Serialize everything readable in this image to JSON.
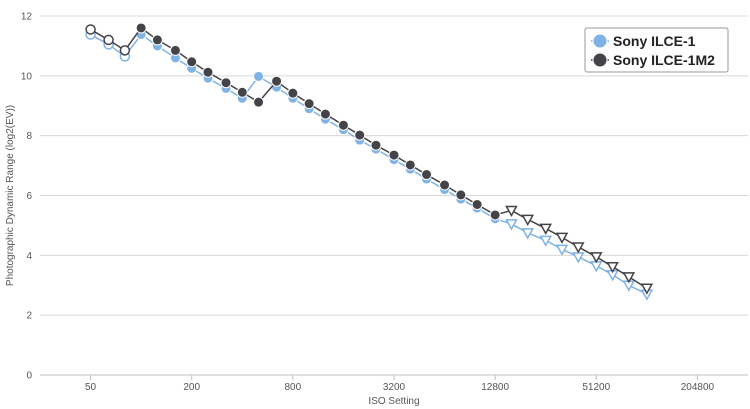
{
  "chart_data": {
    "type": "line",
    "xlabel": "ISO Setting",
    "ylabel": "Photographic Dynamic Range (log2(EV))",
    "x_scale": "log2",
    "xlim": [
      25,
      409600
    ],
    "ylim": [
      0,
      12
    ],
    "x_ticks": [
      50,
      200,
      800,
      3200,
      12800,
      51200,
      204800
    ],
    "x_tick_labels": [
      "50",
      "200",
      "800",
      "3200",
      "12800",
      "51200",
      "204800"
    ],
    "y_ticks": [
      0,
      2,
      4,
      6,
      8,
      10,
      12
    ],
    "y_tick_labels": [
      "0",
      "2",
      "4",
      "6",
      "8",
      "10",
      "12"
    ],
    "grid": "horizontal",
    "legend_position": "top-right",
    "series": [
      {
        "name": "Sony ILCE-1",
        "color": "#7fb2e5",
        "points": [
          {
            "x": 50,
            "y": 11.38,
            "marker": "open-circle"
          },
          {
            "x": 64,
            "y": 11.05,
            "marker": "open-circle"
          },
          {
            "x": 80,
            "y": 10.65,
            "marker": "open-circle"
          },
          {
            "x": 100,
            "y": 11.38,
            "marker": "circle"
          },
          {
            "x": 125,
            "y": 11.0,
            "marker": "circle"
          },
          {
            "x": 160,
            "y": 10.6,
            "marker": "circle"
          },
          {
            "x": 200,
            "y": 10.25,
            "marker": "circle"
          },
          {
            "x": 250,
            "y": 9.92,
            "marker": "circle"
          },
          {
            "x": 320,
            "y": 9.58,
            "marker": "circle"
          },
          {
            "x": 400,
            "y": 9.25,
            "marker": "circle"
          },
          {
            "x": 500,
            "y": 9.98,
            "marker": "circle"
          },
          {
            "x": 640,
            "y": 9.62,
            "marker": "circle"
          },
          {
            "x": 800,
            "y": 9.25,
            "marker": "circle"
          },
          {
            "x": 1000,
            "y": 8.9,
            "marker": "circle"
          },
          {
            "x": 1250,
            "y": 8.55,
            "marker": "circle"
          },
          {
            "x": 1600,
            "y": 8.2,
            "marker": "circle"
          },
          {
            "x": 2000,
            "y": 7.85,
            "marker": "circle"
          },
          {
            "x": 2500,
            "y": 7.55,
            "marker": "circle"
          },
          {
            "x": 3200,
            "y": 7.2,
            "marker": "circle"
          },
          {
            "x": 4000,
            "y": 6.88,
            "marker": "circle"
          },
          {
            "x": 5000,
            "y": 6.55,
            "marker": "circle"
          },
          {
            "x": 6400,
            "y": 6.2,
            "marker": "circle"
          },
          {
            "x": 8000,
            "y": 5.88,
            "marker": "circle"
          },
          {
            "x": 10000,
            "y": 5.58,
            "marker": "circle"
          },
          {
            "x": 12800,
            "y": 5.22,
            "marker": "circle"
          },
          {
            "x": 16000,
            "y": 5.05,
            "marker": "open-triangle"
          },
          {
            "x": 20000,
            "y": 4.75,
            "marker": "open-triangle"
          },
          {
            "x": 25600,
            "y": 4.5,
            "marker": "open-triangle"
          },
          {
            "x": 32000,
            "y": 4.2,
            "marker": "open-triangle"
          },
          {
            "x": 40000,
            "y": 3.95,
            "marker": "open-triangle"
          },
          {
            "x": 51200,
            "y": 3.65,
            "marker": "open-triangle"
          },
          {
            "x": 64000,
            "y": 3.35,
            "marker": "open-triangle"
          },
          {
            "x": 80000,
            "y": 3.0,
            "marker": "open-triangle"
          },
          {
            "x": 102400,
            "y": 2.7,
            "marker": "open-triangle"
          }
        ]
      },
      {
        "name": "Sony ILCE-1M2",
        "color": "#434348",
        "points": [
          {
            "x": 50,
            "y": 11.55,
            "marker": "open-circle"
          },
          {
            "x": 64,
            "y": 11.2,
            "marker": "open-circle"
          },
          {
            "x": 80,
            "y": 10.85,
            "marker": "open-circle"
          },
          {
            "x": 100,
            "y": 11.6,
            "marker": "circle"
          },
          {
            "x": 125,
            "y": 11.2,
            "marker": "circle"
          },
          {
            "x": 160,
            "y": 10.85,
            "marker": "circle"
          },
          {
            "x": 200,
            "y": 10.47,
            "marker": "circle"
          },
          {
            "x": 250,
            "y": 10.12,
            "marker": "circle"
          },
          {
            "x": 320,
            "y": 9.77,
            "marker": "circle"
          },
          {
            "x": 400,
            "y": 9.45,
            "marker": "circle"
          },
          {
            "x": 500,
            "y": 9.12,
            "marker": "circle"
          },
          {
            "x": 640,
            "y": 9.82,
            "marker": "circle"
          },
          {
            "x": 800,
            "y": 9.42,
            "marker": "circle"
          },
          {
            "x": 1000,
            "y": 9.07,
            "marker": "circle"
          },
          {
            "x": 1250,
            "y": 8.72,
            "marker": "circle"
          },
          {
            "x": 1600,
            "y": 8.35,
            "marker": "circle"
          },
          {
            "x": 2000,
            "y": 8.02,
            "marker": "circle"
          },
          {
            "x": 2500,
            "y": 7.68,
            "marker": "circle"
          },
          {
            "x": 3200,
            "y": 7.35,
            "marker": "circle"
          },
          {
            "x": 4000,
            "y": 7.02,
            "marker": "circle"
          },
          {
            "x": 5000,
            "y": 6.7,
            "marker": "circle"
          },
          {
            "x": 6400,
            "y": 6.35,
            "marker": "circle"
          },
          {
            "x": 8000,
            "y": 6.02,
            "marker": "circle"
          },
          {
            "x": 10000,
            "y": 5.7,
            "marker": "circle"
          },
          {
            "x": 12800,
            "y": 5.35,
            "marker": "circle"
          },
          {
            "x": 16000,
            "y": 5.5,
            "marker": "open-triangle"
          },
          {
            "x": 20000,
            "y": 5.2,
            "marker": "open-triangle"
          },
          {
            "x": 25600,
            "y": 4.9,
            "marker": "open-triangle"
          },
          {
            "x": 32000,
            "y": 4.6,
            "marker": "open-triangle"
          },
          {
            "x": 40000,
            "y": 4.28,
            "marker": "open-triangle"
          },
          {
            "x": 51200,
            "y": 3.95,
            "marker": "open-triangle"
          },
          {
            "x": 64000,
            "y": 3.62,
            "marker": "open-triangle"
          },
          {
            "x": 80000,
            "y": 3.28,
            "marker": "open-triangle"
          },
          {
            "x": 102400,
            "y": 2.9,
            "marker": "open-triangle"
          }
        ]
      }
    ]
  }
}
